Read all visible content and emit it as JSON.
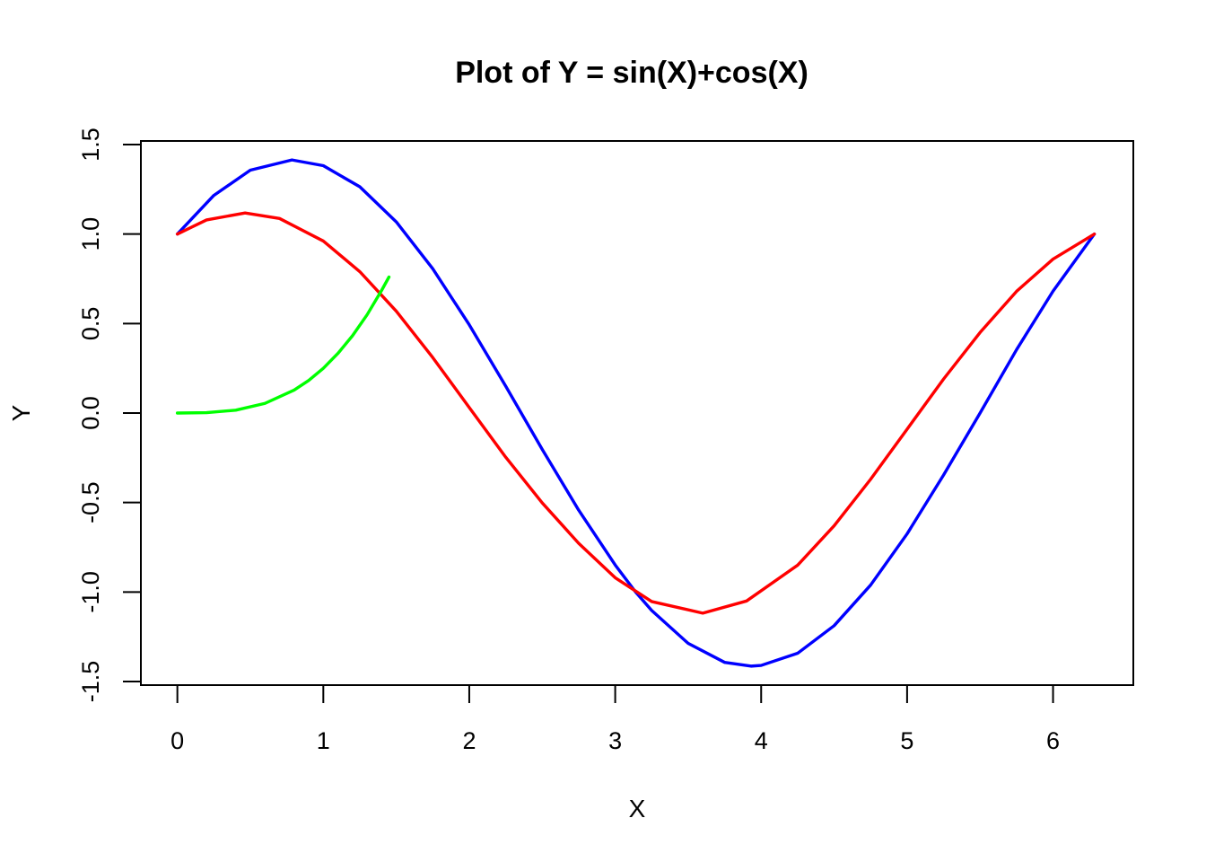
{
  "chart_data": {
    "type": "line",
    "title": "Plot of  Y = sin(X)+cos(X)",
    "xlabel": "X",
    "ylabel": "Y",
    "xlim": [
      -0.25,
      6.55
    ],
    "ylim": [
      -1.52,
      1.52
    ],
    "xticks": [
      0,
      1,
      2,
      3,
      4,
      5,
      6
    ],
    "xtick_labels": [
      "0",
      "1",
      "2",
      "3",
      "4",
      "5",
      "6"
    ],
    "yticks": [
      -1.5,
      -1.0,
      -0.5,
      0.0,
      0.5,
      1.0,
      1.5
    ],
    "ytick_labels": [
      "-1.5",
      "-1.0",
      "-0.5",
      "0.0",
      "0.5",
      "1.0",
      "1.5"
    ],
    "grid": false,
    "legend": "none",
    "series": [
      {
        "color": "#0000ff",
        "x": [
          0,
          0.25,
          0.5,
          0.785,
          1.0,
          1.25,
          1.5,
          1.75,
          2.0,
          2.25,
          2.5,
          2.75,
          3.0,
          3.14,
          3.25,
          3.5,
          3.75,
          3.93,
          4.0,
          4.25,
          4.5,
          4.75,
          5.0,
          5.25,
          5.5,
          5.75,
          6.0,
          6.283
        ],
        "y": [
          1.0,
          1.216,
          1.357,
          1.414,
          1.382,
          1.264,
          1.068,
          0.806,
          0.493,
          0.15,
          -0.203,
          -0.543,
          -0.849,
          -1.0,
          -1.103,
          -1.287,
          -1.393,
          -1.414,
          -1.41,
          -1.342,
          -1.188,
          -0.961,
          -0.675,
          -0.346,
          0.0,
          0.354,
          0.681,
          1.0
        ]
      },
      {
        "color": "#ff0000",
        "x": [
          0,
          0.2,
          0.464,
          0.7,
          1.0,
          1.25,
          1.5,
          1.75,
          2.0,
          2.25,
          2.5,
          2.75,
          3.0,
          3.25,
          3.6,
          3.9,
          4.25,
          4.5,
          4.75,
          5.0,
          5.25,
          5.5,
          5.75,
          6.0,
          6.283
        ],
        "y": [
          1.0,
          1.079,
          1.118,
          1.087,
          0.961,
          0.79,
          0.569,
          0.31,
          0.031,
          -0.247,
          -0.502,
          -0.728,
          -0.92,
          -1.053,
          -1.118,
          -1.05,
          -0.85,
          -0.63,
          -0.37,
          -0.09,
          0.19,
          0.45,
          0.68,
          0.86,
          1.0
        ]
      },
      {
        "color": "#00ff00",
        "x": [
          0,
          0.2,
          0.4,
          0.6,
          0.8,
          0.9,
          1.0,
          1.1,
          1.2,
          1.3,
          1.4,
          1.45
        ],
        "y": [
          0,
          0.002,
          0.016,
          0.054,
          0.128,
          0.182,
          0.25,
          0.333,
          0.432,
          0.549,
          0.686,
          0.76
        ]
      }
    ]
  }
}
